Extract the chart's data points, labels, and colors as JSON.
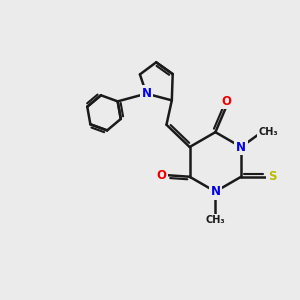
{
  "bg_color": "#ebebeb",
  "bond_color": "#1a1a1a",
  "N_color": "#0000ee",
  "O_color": "#ee0000",
  "S_color": "#bbbb00",
  "bond_width": 1.8,
  "font_size_atom": 8.5,
  "fig_size": [
    3.0,
    3.0
  ],
  "dpi": 100,
  "xlim": [
    0,
    10
  ],
  "ylim": [
    0,
    10
  ]
}
